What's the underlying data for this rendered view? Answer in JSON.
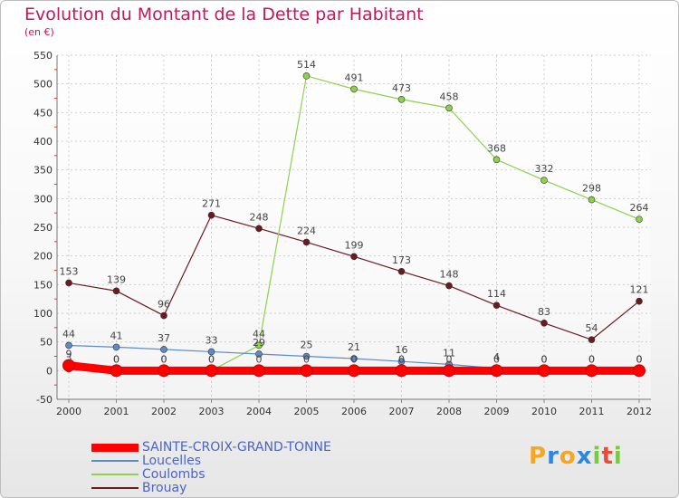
{
  "header": {
    "title": "Evolution du Montant de la Dette par Habitant",
    "subtitle": "(en €)"
  },
  "logo": {
    "text": "Proxiti",
    "letter_colors": [
      "#f5a623",
      "#2e86de",
      "#f5a623",
      "#2e86de",
      "#7ac943",
      "#e74c3c",
      "#7ac943"
    ]
  },
  "chart_data": {
    "type": "line",
    "title": "Evolution du Montant de la Dette par Habitant",
    "subtitle": "(en €)",
    "x": [
      "2000",
      "2001",
      "2002",
      "2003",
      "2004",
      "2005",
      "2006",
      "2007",
      "2008",
      "2009",
      "2010",
      "2011",
      "2012"
    ],
    "ylim": [
      -50,
      550
    ],
    "yticks": [
      -50,
      0,
      50,
      100,
      150,
      200,
      250,
      300,
      350,
      400,
      450,
      500,
      550
    ],
    "grid": true,
    "legend_position": "bottom-left",
    "series": [
      {
        "name": "SAINTE-CROIX-GRAND-TONNE",
        "color": "#ff0000",
        "values": [
          9,
          0,
          0,
          0,
          0,
          0,
          0,
          0,
          0,
          0,
          0,
          0,
          0
        ]
      },
      {
        "name": "Loucelles",
        "color": "#5b8cc8",
        "values": [
          44,
          41,
          37,
          33,
          29,
          25,
          21,
          16,
          11,
          4,
          0,
          0,
          0
        ]
      },
      {
        "name": "Coulombs",
        "color": "#8fd14f",
        "values": [
          3,
          0,
          0,
          0,
          44,
          514,
          491,
          473,
          458,
          368,
          332,
          298,
          264
        ]
      },
      {
        "name": "Brouay",
        "color": "#6b1a22",
        "values": [
          153,
          139,
          96,
          271,
          248,
          224,
          199,
          173,
          148,
          114,
          83,
          54,
          121
        ]
      }
    ]
  }
}
